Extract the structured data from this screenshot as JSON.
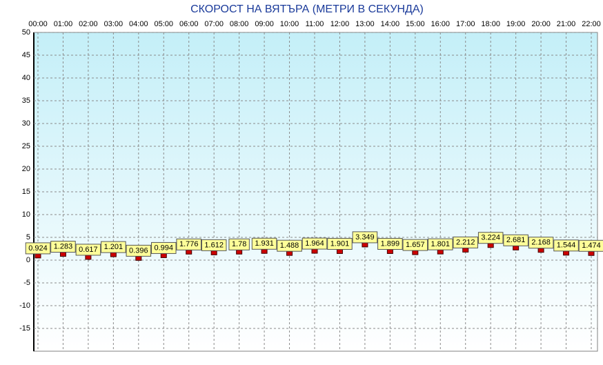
{
  "chart_data": {
    "type": "scatter",
    "title": "СКОРОСТ НА ВЯТЪРА (МЕТРИ В СЕКУНДА)",
    "categories": [
      "00:00",
      "01:00",
      "02:00",
      "03:00",
      "04:00",
      "05:00",
      "06:00",
      "07:00",
      "08:00",
      "09:00",
      "10:00",
      "11:00",
      "12:00",
      "13:00",
      "14:00",
      "15:00",
      "16:00",
      "17:00",
      "18:00",
      "19:00",
      "20:00",
      "21:00",
      "22:00"
    ],
    "values": [
      0.924,
      1.283,
      0.617,
      1.201,
      0.396,
      0.994,
      1.776,
      1.612,
      1.78,
      1.931,
      1.488,
      1.964,
      1.901,
      3.349,
      1.899,
      1.657,
      1.801,
      2.212,
      3.224,
      2.681,
      2.168,
      1.544,
      1.474
    ],
    "color": "#cc0000",
    "ylim": [
      -20,
      50
    ],
    "yticks": [
      50,
      45,
      40,
      35,
      30,
      25,
      20,
      15,
      10,
      5,
      0,
      -5,
      -10,
      -15
    ],
    "grid": true
  }
}
